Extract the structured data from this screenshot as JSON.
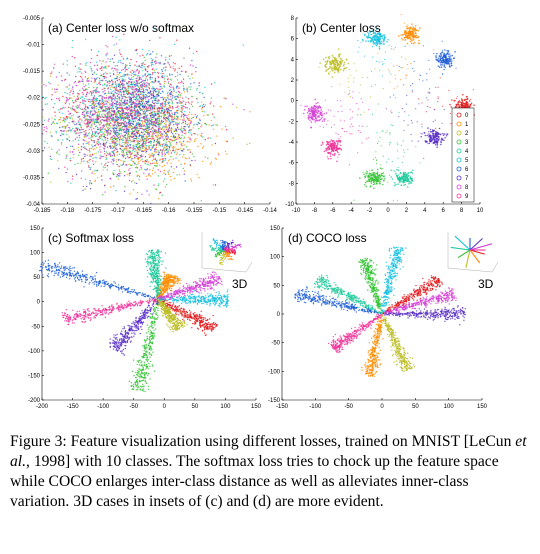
{
  "colors": [
    "#e31a1c",
    "#ff8c00",
    "#bcbd22",
    "#33c233",
    "#1ec99a",
    "#16c0e0",
    "#1f5fd6",
    "#5a2fc7",
    "#d43fd6",
    "#f0329a"
  ],
  "legend": [
    "0",
    "1",
    "2",
    "3",
    "4",
    "5",
    "6",
    "7",
    "8",
    "9"
  ],
  "inset_label": "3D",
  "caption": {
    "part1": "Figure 3: Feature visualization using different losses, trained on MNIST [LeCun ",
    "etal": "et al.",
    "part2": ", 1998] with 10 classes. The softmax loss tries to chock up the feature space while COCO enlarges inter-class distance as well as alleviates inner-class variation. 3D cases in insets of (c) and (d) are more evident."
  },
  "chart_data": [
    {
      "type": "scatter",
      "title": "(a) Center loss w/o softmax",
      "xlim": [
        -0.185,
        -0.14
      ],
      "ylim": [
        -0.04,
        -0.005
      ],
      "xticks": [
        "-0.185",
        "-0.18",
        "-0.175",
        "-0.17",
        "-0.165",
        "-0.16",
        "-0.155",
        "-0.15",
        "-0.145",
        "-0.14"
      ],
      "xtick_values": [
        -0.185,
        -0.18,
        -0.175,
        -0.17,
        -0.165,
        -0.16,
        -0.155,
        -0.15,
        -0.145,
        -0.14
      ],
      "yticks": [
        "-0.005",
        "-0.01",
        "-0.015",
        "-0.02",
        "-0.025",
        "-0.03",
        "-0.035",
        "-0.04"
      ],
      "ytick_values": [
        -0.005,
        -0.01,
        -0.015,
        -0.02,
        -0.025,
        -0.03,
        -0.035,
        -0.04
      ],
      "description_of_data": "ten overlapping classes centered near (-0.168, -0.024)",
      "classes": [
        {
          "class": "0",
          "cx": -0.168,
          "cy": -0.022,
          "sx": 0.007,
          "sy": 0.0055
        },
        {
          "class": "1",
          "cx": -0.162,
          "cy": -0.028,
          "sx": 0.006,
          "sy": 0.004
        },
        {
          "class": "2",
          "cx": -0.169,
          "cy": -0.024,
          "sx": 0.007,
          "sy": 0.005
        },
        {
          "class": "3",
          "cx": -0.166,
          "cy": -0.025,
          "sx": 0.006,
          "sy": 0.005
        },
        {
          "class": "4",
          "cx": -0.171,
          "cy": -0.023,
          "sx": 0.007,
          "sy": 0.005
        },
        {
          "class": "5",
          "cx": -0.167,
          "cy": -0.021,
          "sx": 0.006,
          "sy": 0.005
        },
        {
          "class": "6",
          "cx": -0.165,
          "cy": -0.022,
          "sx": 0.005,
          "sy": 0.004
        },
        {
          "class": "7",
          "cx": -0.169,
          "cy": -0.026,
          "sx": 0.007,
          "sy": 0.005
        },
        {
          "class": "8",
          "cx": -0.17,
          "cy": -0.022,
          "sx": 0.007,
          "sy": 0.005
        },
        {
          "class": "9",
          "cx": -0.168,
          "cy": -0.024,
          "sx": 0.007,
          "sy": 0.005
        }
      ]
    },
    {
      "type": "scatter",
      "title": "(b) Center loss",
      "xlim": [
        -10,
        10
      ],
      "ylim": [
        -10,
        8
      ],
      "xticks": [
        "-10",
        "-8",
        "-6",
        "-4",
        "-2",
        "0",
        "2",
        "4",
        "6",
        "8",
        "10"
      ],
      "xtick_values": [
        -10,
        -8,
        -6,
        -4,
        -2,
        0,
        2,
        4,
        6,
        8,
        10
      ],
      "yticks": [
        "8",
        "6",
        "4",
        "2",
        "0",
        "-2",
        "-4",
        "-6",
        "-8",
        "-10"
      ],
      "ytick_values": [
        8,
        6,
        4,
        2,
        0,
        -2,
        -4,
        -6,
        -8,
        -10
      ],
      "legend_position": "right",
      "classes": [
        {
          "class": "0",
          "cx": 8.2,
          "cy": -0.5,
          "sx": 0.5,
          "sy": 0.35
        },
        {
          "class": "1",
          "cx": 2.5,
          "cy": 6.5,
          "sx": 0.45,
          "sy": 0.35
        },
        {
          "class": "2",
          "cx": -5.8,
          "cy": 3.5,
          "sx": 0.6,
          "sy": 0.45
        },
        {
          "class": "3",
          "cx": -1.5,
          "cy": -7.5,
          "sx": 0.5,
          "sy": 0.35
        },
        {
          "class": "4",
          "cx": 1.8,
          "cy": -7.5,
          "sx": 0.45,
          "sy": 0.35
        },
        {
          "class": "5",
          "cx": -1.2,
          "cy": 6.0,
          "sx": 0.55,
          "sy": 0.4
        },
        {
          "class": "6",
          "cx": 6.2,
          "cy": 4.0,
          "sx": 0.4,
          "sy": 0.4
        },
        {
          "class": "7",
          "cx": 5.0,
          "cy": -3.5,
          "sx": 0.5,
          "sy": 0.35
        },
        {
          "class": "8",
          "cx": -8.0,
          "cy": -1.2,
          "sx": 0.5,
          "sy": 0.45
        },
        {
          "class": "9",
          "cx": -6.0,
          "cy": -4.5,
          "sx": 0.45,
          "sy": 0.4
        }
      ]
    },
    {
      "type": "scatter",
      "title": "(c) Softmax loss",
      "xlim": [
        -200,
        150
      ],
      "ylim": [
        -200,
        150
      ],
      "xticks": [
        "-200",
        "-150",
        "-100",
        "-50",
        "0",
        "50",
        "100",
        "150"
      ],
      "xtick_values": [
        -200,
        -150,
        -100,
        -50,
        0,
        50,
        100,
        150
      ],
      "yticks": [
        "150",
        "100",
        "50",
        "0",
        "-50",
        "-100",
        "-150",
        "-200"
      ],
      "ytick_values": [
        150,
        100,
        50,
        0,
        -50,
        -100,
        -150,
        -200
      ],
      "origin": [
        -10,
        5
      ],
      "rays": [
        {
          "class": "0",
          "angle": -33,
          "length": 110
        },
        {
          "class": "1",
          "angle": 65,
          "length": 55
        },
        {
          "class": "2",
          "angle": -60,
          "length": 70
        },
        {
          "class": "3",
          "angle": -100,
          "length": 190
        },
        {
          "class": "4",
          "angle": 95,
          "length": 100
        },
        {
          "class": "5",
          "angle": 0,
          "length": 115
        },
        {
          "class": "6",
          "angle": 160,
          "length": 205
        },
        {
          "class": "7",
          "angle": -125,
          "length": 125
        },
        {
          "class": "8",
          "angle": 22,
          "length": 110
        },
        {
          "class": "9",
          "angle": -165,
          "length": 160
        }
      ]
    },
    {
      "type": "scatter",
      "title": "(d) COCO loss",
      "xlim": [
        -150,
        150
      ],
      "ylim": [
        -150,
        150
      ],
      "xticks": [
        "-150",
        "-100",
        "-50",
        "0",
        "50",
        "100",
        "150"
      ],
      "xtick_values": [
        -150,
        -100,
        -50,
        0,
        50,
        100,
        150
      ],
      "yticks": [
        "150",
        "100",
        "50",
        "0",
        "-50",
        "-100",
        "-150"
      ],
      "ytick_values": [
        150,
        100,
        50,
        0,
        -50,
        -100,
        -150
      ],
      "origin": [
        0,
        0
      ],
      "rays": [
        {
          "class": "0",
          "angle": 35,
          "length": 105
        },
        {
          "class": "1",
          "angle": -100,
          "length": 110
        },
        {
          "class": "2",
          "angle": -68,
          "length": 105
        },
        {
          "class": "3",
          "angle": 105,
          "length": 100
        },
        {
          "class": "4",
          "angle": 148,
          "length": 115
        },
        {
          "class": "5",
          "angle": 78,
          "length": 120
        },
        {
          "class": "6",
          "angle": 165,
          "length": 135
        },
        {
          "class": "7",
          "angle": 0,
          "length": 125
        },
        {
          "class": "8",
          "angle": 18,
          "length": 115
        },
        {
          "class": "9",
          "angle": -140,
          "length": 95
        }
      ]
    }
  ]
}
